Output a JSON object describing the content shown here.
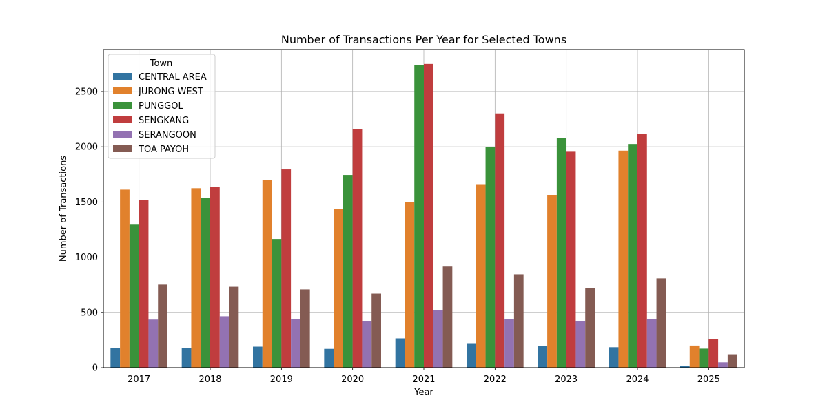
{
  "chart_data": {
    "type": "bar",
    "title": "Number of Transactions Per Year for Selected Towns",
    "xlabel": "Year",
    "ylabel": "Number of Transactions",
    "ylim": [
      0,
      2880
    ],
    "yticks": [
      0,
      500,
      1000,
      1500,
      2000,
      2500
    ],
    "grid": true,
    "legend_title": "Town",
    "legend_position": "top-left",
    "categories": [
      "2017",
      "2018",
      "2019",
      "2020",
      "2021",
      "2022",
      "2023",
      "2024",
      "2025"
    ],
    "series": [
      {
        "name": "CENTRAL AREA",
        "color": "#3274a1",
        "values": [
          180,
          178,
          190,
          170,
          265,
          215,
          195,
          185,
          15
        ]
      },
      {
        "name": "JURONG WEST",
        "color": "#e1812c",
        "values": [
          1612,
          1625,
          1700,
          1438,
          1500,
          1655,
          1562,
          1965,
          200
        ]
      },
      {
        "name": "PUNGGOL",
        "color": "#3a923a",
        "values": [
          1295,
          1535,
          1165,
          1745,
          2740,
          1995,
          2080,
          2025,
          172
        ]
      },
      {
        "name": "SENGKANG",
        "color": "#c03d3e",
        "values": [
          1518,
          1638,
          1795,
          2158,
          2750,
          2302,
          1955,
          2118,
          260
        ]
      },
      {
        "name": "SERANGOON",
        "color": "#9372b2",
        "values": [
          435,
          465,
          442,
          422,
          520,
          438,
          420,
          440,
          48
        ]
      },
      {
        "name": "TOA PAYOH",
        "color": "#845b53",
        "values": [
          752,
          732,
          708,
          670,
          915,
          845,
          720,
          808,
          115
        ]
      }
    ]
  }
}
